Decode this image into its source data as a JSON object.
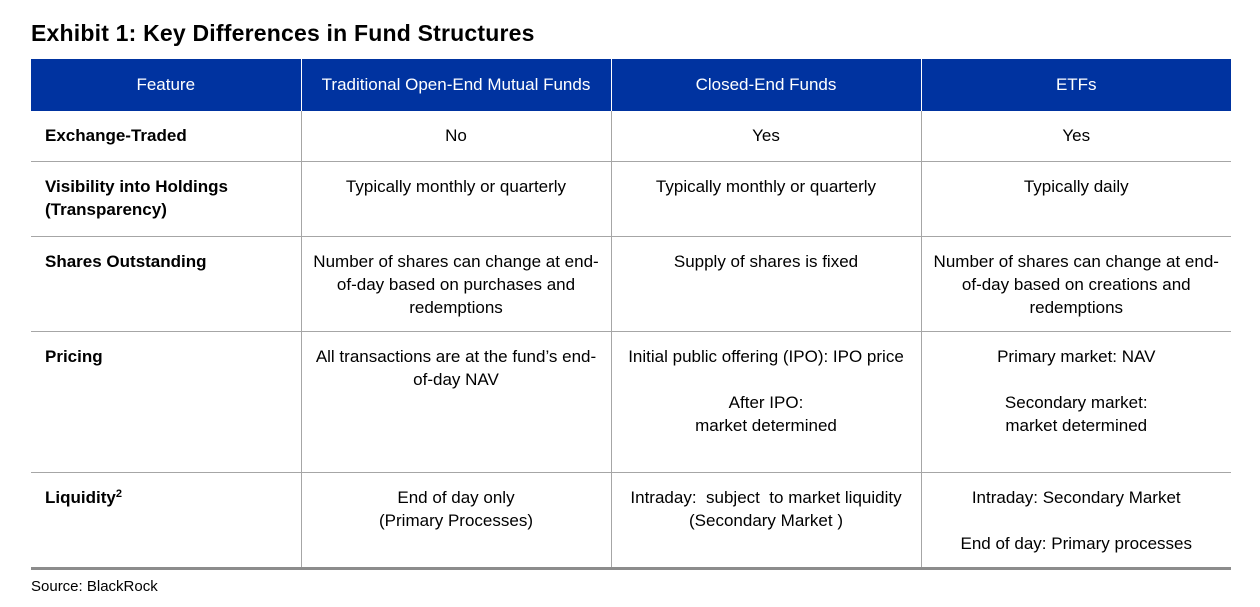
{
  "title": "Exhibit 1: Key Differences in Fund Structures",
  "columns": [
    "Feature",
    "Traditional Open-End Mutual Funds",
    "Closed-End Funds",
    "ETFs"
  ],
  "rows": [
    {
      "feature": "Exchange-Traded",
      "mutual": "No",
      "closed": "Yes",
      "etf": "Yes"
    },
    {
      "feature_line1": "Visibility into Holdings",
      "feature_line2": "(Transparency)",
      "mutual": "Typically monthly or quarterly",
      "closed": "Typically monthly or quarterly",
      "etf": "Typically daily"
    },
    {
      "feature": "Shares Outstanding",
      "mutual": "Number of shares can change at end-of-day based on purchases and redemptions",
      "closed": "Supply of shares is fixed",
      "etf": "Number of shares can change at end-of-day based on creations and redemptions"
    },
    {
      "feature": "Pricing",
      "mutual": "All transactions are at the fund’s end-of-day NAV",
      "closed_a": "Initial public offering (IPO): IPO price",
      "closed_b_line1": "After IPO:",
      "closed_b_line2": "market determined",
      "etf_a": "Primary market: NAV",
      "etf_b_line1": "Secondary market:",
      "etf_b_line2": "market determined"
    },
    {
      "feature": "Liquidity",
      "footnote": "2",
      "mutual_line1": "End of day only",
      "mutual_line2": "(Primary Processes)",
      "closed": "Intraday:  subject  to market liquidity (Secondary Market )",
      "etf_a": "Intraday: Secondary Market",
      "etf_b": "End of day: Primary processes"
    }
  ],
  "source": "Source: BlackRock",
  "colors": {
    "header_bg": "#0033a0",
    "header_text": "#ffffff",
    "grid_line": "#a6a6a6"
  }
}
